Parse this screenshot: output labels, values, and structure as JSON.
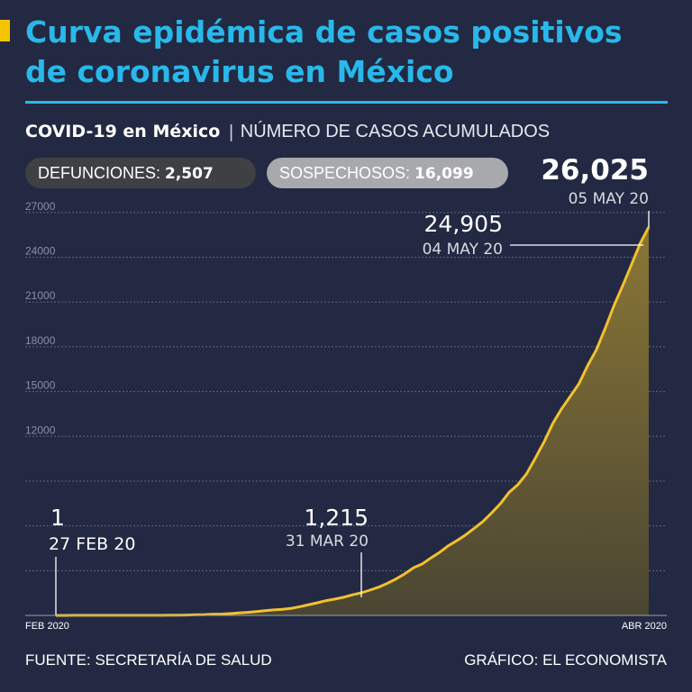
{
  "title": {
    "line1": "Curva epidémica de casos positivos",
    "line2": "de coronavirus en México"
  },
  "subtitle": {
    "bold": "COVID-19 en México",
    "separator": "|",
    "text": "NÚMERO DE CASOS ACUMULADOS"
  },
  "badges": {
    "defunciones": {
      "label": "DEFUNCIONES: ",
      "value": "2,507"
    },
    "sospechosos": {
      "label": "SOSPECHOSOS: ",
      "value": "16,099"
    }
  },
  "footer": {
    "source": "FUENTE: SECRETARÍA DE SALUD",
    "credit": "GRÁFICO: EL ECONOMISTA"
  },
  "colors": {
    "background": "#232942",
    "title": "#29b8ea",
    "accent": "#f5c400",
    "line": "#f2c12e"
  },
  "chart_data": {
    "type": "area",
    "title": "",
    "xlabel": "",
    "ylabel": "",
    "x_tick_labels": [
      "FEB 2020",
      "ABR 2020"
    ],
    "y_ticks": [
      27000,
      24000,
      21000,
      18000,
      15000,
      12000
    ],
    "ylim": [
      0,
      30000
    ],
    "grid": true,
    "dates": [
      "27 FEB",
      "28 FEB",
      "29 FEB",
      "1 MAR",
      "2 MAR",
      "3 MAR",
      "4 MAR",
      "5 MAR",
      "6 MAR",
      "7 MAR",
      "8 MAR",
      "9 MAR",
      "10 MAR",
      "11 MAR",
      "12 MAR",
      "13 MAR",
      "14 MAR",
      "15 MAR",
      "16 MAR",
      "17 MAR",
      "18 MAR",
      "19 MAR",
      "20 MAR",
      "21 MAR",
      "22 MAR",
      "23 MAR",
      "24 MAR",
      "25 MAR",
      "26 MAR",
      "27 MAR",
      "28 MAR",
      "29 MAR",
      "30 MAR",
      "31 MAR",
      "1 ABR",
      "2 ABR",
      "3 ABR",
      "4 ABR",
      "5 ABR",
      "6 ABR",
      "7 ABR",
      "8 ABR",
      "9 ABR",
      "10 ABR",
      "11 ABR",
      "12 ABR",
      "13 ABR",
      "14 ABR",
      "15 ABR",
      "16 ABR",
      "17 ABR",
      "18 ABR",
      "19 ABR",
      "20 ABR",
      "21 ABR",
      "22 ABR",
      "23 ABR",
      "24 ABR",
      "25 ABR",
      "26 ABR",
      "27 ABR",
      "28 ABR",
      "29 ABR",
      "30 ABR",
      "1 MAY",
      "2 MAY",
      "3 MAY",
      "4 MAY",
      "5 MAY"
    ],
    "series": [
      {
        "values": [
          1,
          2,
          4,
          5,
          5,
          5,
          5,
          5,
          6,
          7,
          7,
          7,
          7,
          11,
          12,
          26,
          41,
          53,
          82,
          93,
          118,
          164,
          203,
          251,
          316,
          367,
          405,
          475,
          585,
          717,
          848,
          993,
          1094,
          1215,
          1378,
          1510,
          1688,
          1890,
          2143,
          2439,
          2785,
          3181,
          3441,
          3844,
          4219,
          4661,
          5014,
          5399,
          5847,
          6297,
          6875,
          7497,
          8261,
          8772,
          9501,
          10544,
          11633,
          12872,
          13842,
          14677,
          15529,
          16752,
          17799,
          19224,
          20739,
          22088,
          23471,
          24905,
          26025
        ]
      }
    ],
    "annotations": [
      {
        "value": "1",
        "date": "27 FEB 20"
      },
      {
        "value": "1,215",
        "date": "31 MAR 20"
      },
      {
        "value": "24,905",
        "date": "04 MAY 20"
      },
      {
        "value": "26,025",
        "date": "05 MAY 20"
      }
    ]
  }
}
